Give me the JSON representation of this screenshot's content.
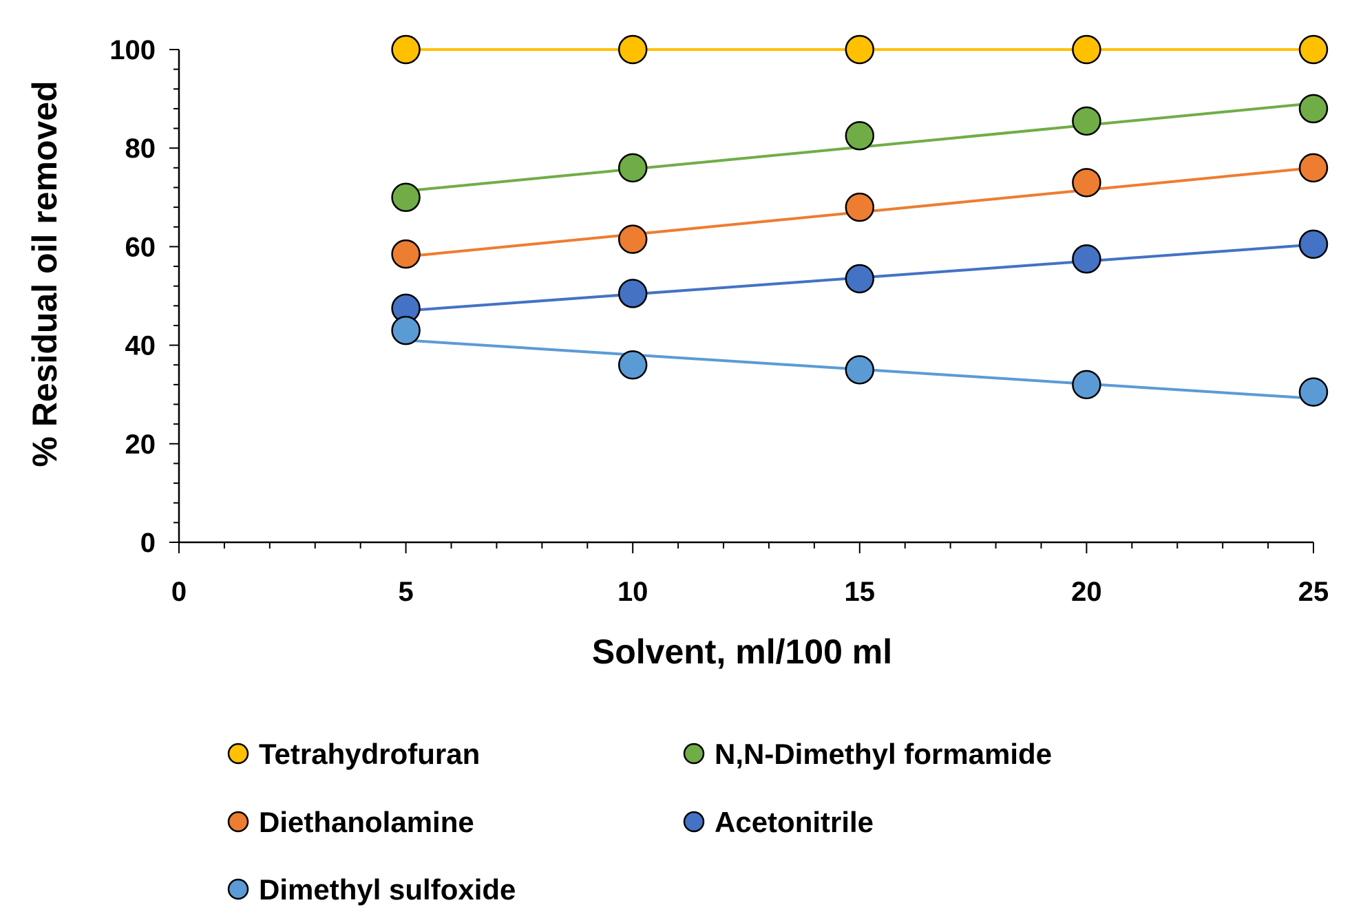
{
  "chart_data": {
    "type": "scatter",
    "title": "",
    "xlabel": "Solvent, ml/100 ml",
    "ylabel": "% Residual oil removed",
    "xlim": [
      0,
      25
    ],
    "ylim": [
      0,
      100
    ],
    "xticks": [
      0,
      5,
      10,
      15,
      20,
      25
    ],
    "yticks": [
      0,
      20,
      40,
      60,
      80,
      100
    ],
    "grid": false,
    "legend_position": "bottom",
    "x": [
      5,
      10,
      15,
      20,
      25
    ],
    "series": [
      {
        "name": "Tetrahydrofuran",
        "color": "#FFC000",
        "values": [
          100,
          100,
          100,
          100,
          100
        ],
        "trend": [
          100,
          100
        ]
      },
      {
        "name": "N,N-Dimethyl formamide",
        "color": "#70AD47",
        "values": [
          70,
          76,
          82.5,
          85.5,
          88
        ],
        "trend": [
          71.3,
          89.1
        ]
      },
      {
        "name": "Diethanolamine",
        "color": "#ED7D31",
        "values": [
          58.5,
          61.5,
          68,
          73,
          76
        ],
        "trend": [
          58,
          76
        ]
      },
      {
        "name": "Acetonitrile",
        "color": "#4472C4",
        "values": [
          47.5,
          50.5,
          53.5,
          57.5,
          60.5
        ],
        "trend": [
          47,
          60.4
        ]
      },
      {
        "name": "Dimethyl sulfoxide",
        "color": "#5B9BD5",
        "values": [
          43,
          36,
          35,
          32,
          30.5
        ],
        "trend": [
          41,
          29.2
        ]
      }
    ]
  }
}
